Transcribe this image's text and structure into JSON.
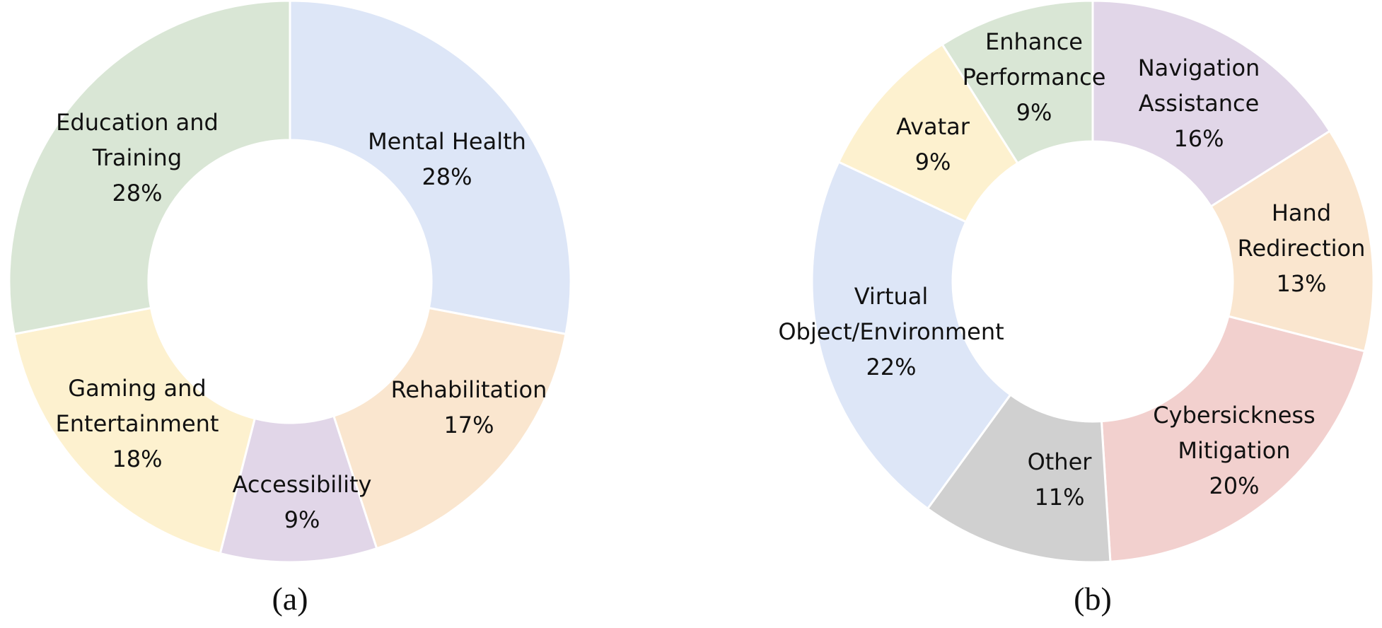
{
  "chart_data": [
    {
      "type": "pie",
      "variant": "donut",
      "caption": "(a)",
      "start_angle": "12 o'clock",
      "direction": "clockwise",
      "slices": [
        {
          "label": "Mental Health",
          "value": 28,
          "value_label": "28%",
          "color": "#DDE6F7"
        },
        {
          "label": "Rehabilitation",
          "value": 17,
          "value_label": "17%",
          "color": "#FAE6CF"
        },
        {
          "label": "Accessibility",
          "value": 9,
          "value_label": "9%",
          "color": "#E1D6E8"
        },
        {
          "label": "Gaming and Entertainment",
          "value": 18,
          "value_label": "18%",
          "color": "#FDF1CF"
        },
        {
          "label": "Education and Training",
          "value": 28,
          "value_label": "28%",
          "color": "#D9E6D5"
        }
      ]
    },
    {
      "type": "pie",
      "variant": "donut",
      "caption": "(b)",
      "start_angle": "12 o'clock",
      "direction": "clockwise",
      "slices": [
        {
          "label": "Navigation Assistance",
          "value": 16,
          "value_label": "16%",
          "color": "#E1D6E8"
        },
        {
          "label": "Hand Redirection",
          "value": 13,
          "value_label": "13%",
          "color": "#FAE6CF"
        },
        {
          "label": "Cybersickness Mitigation",
          "value": 20,
          "value_label": "20%",
          "color": "#F2D0CE"
        },
        {
          "label": "Other",
          "value": 11,
          "value_label": "11%",
          "color": "#D0D0D0"
        },
        {
          "label": "Virtual Object/Environment",
          "value": 22,
          "value_label": "22%",
          "color": "#DDE6F7"
        },
        {
          "label": "Avatar",
          "value": 9,
          "value_label": "9%",
          "color": "#FDF1CF"
        },
        {
          "label": "Enhance Performance",
          "value": 9,
          "value_label": "9%",
          "color": "#D9E6D5"
        }
      ]
    }
  ]
}
